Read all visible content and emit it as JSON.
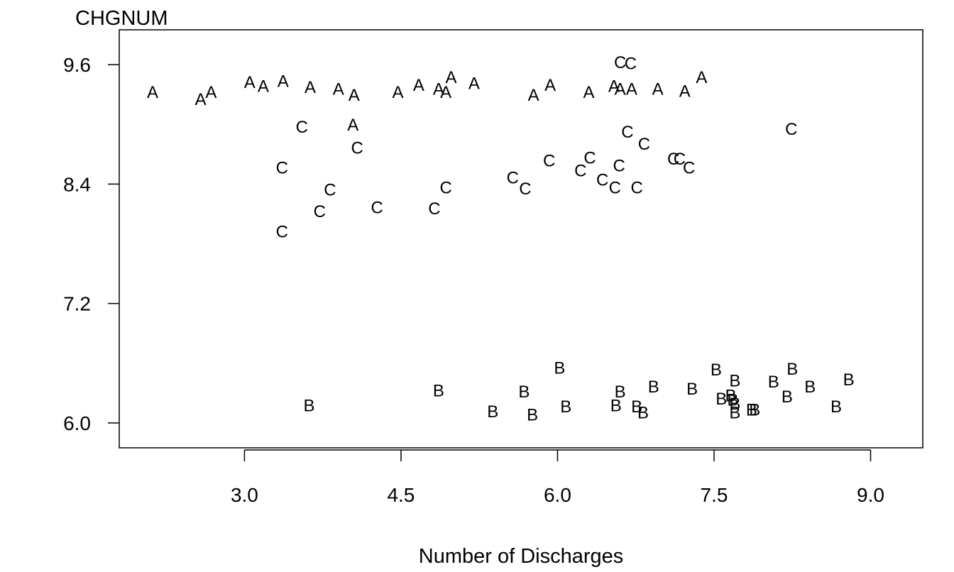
{
  "chart_data": {
    "type": "scatter",
    "title": "",
    "xlabel": "Number of Discharges",
    "ylabel": "CHGNUM",
    "xlim": [
      1.8,
      9.5
    ],
    "ylim": [
      5.75,
      9.95
    ],
    "xticks": [
      "3.0",
      "4.5",
      "6.0",
      "7.5",
      "9.0"
    ],
    "xtick_values": [
      3.0,
      4.5,
      6.0,
      7.5,
      9.0
    ],
    "yticks": [
      "6.0",
      "7.2",
      "8.4",
      "9.6"
    ],
    "ytick_values": [
      6.0,
      7.2,
      8.4,
      9.6
    ],
    "grid": false,
    "series": [
      {
        "marker": "A",
        "points": [
          [
            2.12,
            9.33
          ],
          [
            2.58,
            9.26
          ],
          [
            2.68,
            9.33
          ],
          [
            3.05,
            9.43
          ],
          [
            3.18,
            9.39
          ],
          [
            3.37,
            9.44
          ],
          [
            3.63,
            9.38
          ],
          [
            3.9,
            9.36
          ],
          [
            4.05,
            9.3
          ],
          [
            4.04,
            9.0
          ],
          [
            4.47,
            9.33
          ],
          [
            4.67,
            9.4
          ],
          [
            4.86,
            9.36
          ],
          [
            4.93,
            9.33
          ],
          [
            4.98,
            9.48
          ],
          [
            5.2,
            9.42
          ],
          [
            5.77,
            9.3
          ],
          [
            5.93,
            9.4
          ],
          [
            6.3,
            9.33
          ],
          [
            6.54,
            9.39
          ],
          [
            6.6,
            9.36
          ],
          [
            6.71,
            9.36
          ],
          [
            6.96,
            9.36
          ],
          [
            7.22,
            9.34
          ],
          [
            7.38,
            9.48
          ]
        ]
      },
      {
        "marker": "B",
        "points": [
          [
            3.62,
            6.18
          ],
          [
            4.86,
            6.33
          ],
          [
            5.38,
            6.12
          ],
          [
            5.68,
            6.32
          ],
          [
            5.76,
            6.09
          ],
          [
            6.02,
            6.56
          ],
          [
            6.08,
            6.17
          ],
          [
            6.56,
            6.18
          ],
          [
            6.6,
            6.32
          ],
          [
            6.76,
            6.17
          ],
          [
            6.82,
            6.11
          ],
          [
            6.92,
            6.37
          ],
          [
            7.29,
            6.35
          ],
          [
            7.52,
            6.54
          ],
          [
            7.57,
            6.25
          ],
          [
            7.66,
            6.28
          ],
          [
            7.68,
            6.24
          ],
          [
            7.7,
            6.43
          ],
          [
            7.7,
            6.2
          ],
          [
            7.7,
            6.11
          ],
          [
            7.86,
            6.14
          ],
          [
            7.89,
            6.14
          ],
          [
            8.07,
            6.42
          ],
          [
            8.2,
            6.27
          ],
          [
            8.25,
            6.55
          ],
          [
            8.42,
            6.37
          ],
          [
            8.67,
            6.17
          ],
          [
            8.79,
            6.44
          ]
        ]
      },
      {
        "marker": "C",
        "points": [
          [
            3.36,
            8.57
          ],
          [
            3.36,
            7.93
          ],
          [
            3.55,
            8.98
          ],
          [
            3.72,
            8.13
          ],
          [
            3.82,
            8.35
          ],
          [
            4.08,
            8.77
          ],
          [
            4.27,
            8.17
          ],
          [
            4.82,
            8.16
          ],
          [
            4.93,
            8.37
          ],
          [
            5.57,
            8.47
          ],
          [
            5.69,
            8.36
          ],
          [
            5.92,
            8.64
          ],
          [
            6.22,
            8.54
          ],
          [
            6.31,
            8.67
          ],
          [
            6.43,
            8.45
          ],
          [
            6.55,
            8.37
          ],
          [
            6.59,
            8.59
          ],
          [
            6.6,
            9.63
          ],
          [
            6.67,
            8.93
          ],
          [
            6.7,
            9.62
          ],
          [
            6.76,
            8.37
          ],
          [
            6.83,
            8.81
          ],
          [
            7.11,
            8.66
          ],
          [
            7.17,
            8.66
          ],
          [
            7.26,
            8.57
          ],
          [
            8.24,
            8.96
          ]
        ]
      }
    ]
  }
}
